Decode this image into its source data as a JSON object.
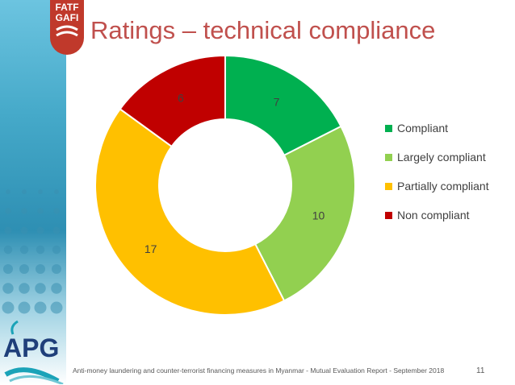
{
  "logo": {
    "line1": "FATF",
    "line2": "GAFI"
  },
  "slide_title": "Ratings – technical compliance",
  "chart_data": {
    "type": "pie",
    "categories": [
      "Compliant",
      "Largely compliant",
      "Partially compliant",
      "Non compliant"
    ],
    "values": [
      7,
      10,
      17,
      6
    ],
    "colors": [
      "#00b050",
      "#92d050",
      "#ffc000",
      "#c00000"
    ],
    "donut": true,
    "legend_position": "right"
  },
  "apg_logo_text": "APG",
  "footer_text": "Anti-money laundering and counter-terrorist financing measures in Myanmar - Mutual Evaluation Report - September 2018",
  "page_number": "11"
}
